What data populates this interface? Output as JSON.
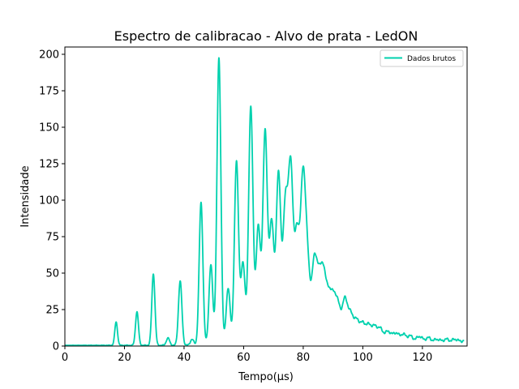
{
  "chart_data": {
    "type": "line",
    "title": "Espectro de calibracao - Alvo de prata - LedON",
    "xlabel": "Tempo(μs)",
    "ylabel": "Intensidade",
    "xlim": [
      0,
      135
    ],
    "ylim": [
      0,
      205
    ],
    "x_ticks": [
      0,
      20,
      40,
      60,
      80,
      100,
      120
    ],
    "y_ticks": [
      0,
      25,
      50,
      75,
      100,
      125,
      150,
      175,
      200
    ],
    "grid": false,
    "legend_position": "top-right",
    "series": [
      {
        "name": "Dados brutos",
        "color": "#00d1ae",
        "peaks_x": [
          17.2,
          24.2,
          29.7,
          34.6,
          38.7,
          42.7,
          45.7,
          49.0,
          51.7,
          54.8,
          57.6,
          59.8,
          62.4,
          64.9,
          67.2,
          69.4,
          71.7,
          74.0,
          75.8,
          77.9,
          79.9,
          81.4,
          83.6,
          85.1,
          86.7,
          88.5,
          90.2,
          91.8,
          94.0,
          96.0,
          98.0,
          100.0,
          102.0,
          104.0,
          106.0,
          108.5,
          111.0,
          113.5,
          116.0,
          119.0,
          122.0,
          125.0,
          128.0,
          131.0,
          134.0
        ],
        "peaks_y": [
          16,
          23,
          49,
          5,
          44,
          4,
          98,
          55,
          197,
          39,
          126,
          56,
          164,
          81,
          146,
          83,
          117,
          94,
          119,
          74,
          108,
          52,
          51,
          37,
          46,
          31,
          28,
          23,
          30,
          19,
          15,
          13,
          12,
          11,
          10,
          9,
          8,
          7,
          6,
          6,
          5,
          4,
          4,
          4,
          3
        ],
        "baseline": 0.5
      }
    ]
  }
}
